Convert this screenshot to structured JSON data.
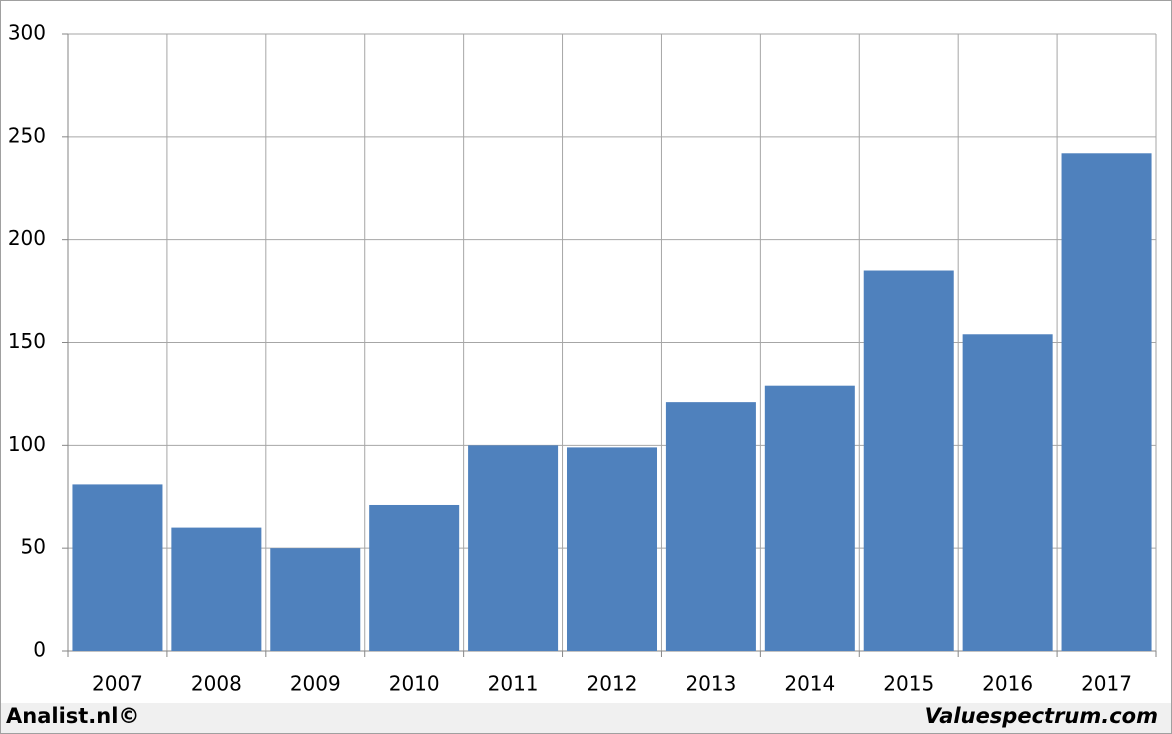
{
  "chart_data": {
    "type": "bar",
    "categories": [
      "2007",
      "2008",
      "2009",
      "2010",
      "2011",
      "2012",
      "2013",
      "2014",
      "2015",
      "2016",
      "2017"
    ],
    "values": [
      81,
      60,
      50,
      71,
      100,
      99,
      121,
      129,
      185,
      154,
      242
    ],
    "color": "#4f81bd",
    "ylim": [
      0,
      300
    ],
    "yticks": [
      0,
      50,
      100,
      150,
      200,
      250,
      300
    ],
    "grid": true,
    "footer_left": "Analist.nl©",
    "footer_right": "Valuespectrum.com"
  }
}
